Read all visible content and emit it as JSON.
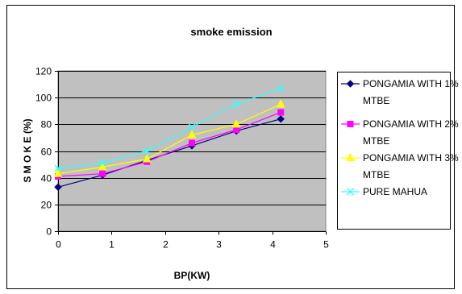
{
  "chart_data": {
    "type": "line",
    "title": "smoke emission",
    "xlabel": "BP(KW)",
    "ylabel": "S M O K E (%)",
    "xlim": [
      0,
      5
    ],
    "ylim": [
      0,
      120
    ],
    "x_ticks": [
      "0",
      "1",
      "2",
      "3",
      "4",
      "5"
    ],
    "y_ticks": [
      "0",
      "20",
      "40",
      "60",
      "80",
      "100",
      "120"
    ],
    "grid": "horizontal",
    "legend_position": "right",
    "plot_area_color": "#c0c0c0",
    "series": [
      {
        "name": "PONGAMIA WITH 1% MTBE",
        "legend_lines": [
          "PONGAMIA WITH 1%",
          "MTBE"
        ],
        "color": "#000080",
        "marker": "diamond",
        "x": [
          0,
          0.83,
          1.66,
          2.5,
          3.33,
          4.16
        ],
        "y": [
          33,
          42,
          53,
          64,
          75,
          84
        ]
      },
      {
        "name": "PONGAMIA WITH 2% MTBE",
        "legend_lines": [
          "PONGAMIA WITH 2%",
          "MTBE"
        ],
        "color": "#ff00ff",
        "marker": "square",
        "x": [
          0,
          0.83,
          1.66,
          2.5,
          3.33,
          4.16
        ],
        "y": [
          41,
          43,
          52,
          66,
          76,
          89
        ]
      },
      {
        "name": "PONGAMIA WITH 3% MTBE",
        "legend_lines": [
          "PONGAMIA WITH 3%",
          "MTBE"
        ],
        "color": "#ffff00",
        "marker": "triangle",
        "x": [
          0,
          0.83,
          1.66,
          2.5,
          3.33,
          4.16
        ],
        "y": [
          43,
          48,
          54,
          72,
          80,
          95
        ]
      },
      {
        "name": "PURE MAHUA",
        "legend_lines": [
          "PURE MAHUA"
        ],
        "color": "#33ffff",
        "marker": "x",
        "x": [
          0,
          0.83,
          1.66,
          2.5,
          3.33,
          4.16
        ],
        "y": [
          47,
          51,
          60,
          78,
          95,
          107
        ]
      }
    ]
  }
}
